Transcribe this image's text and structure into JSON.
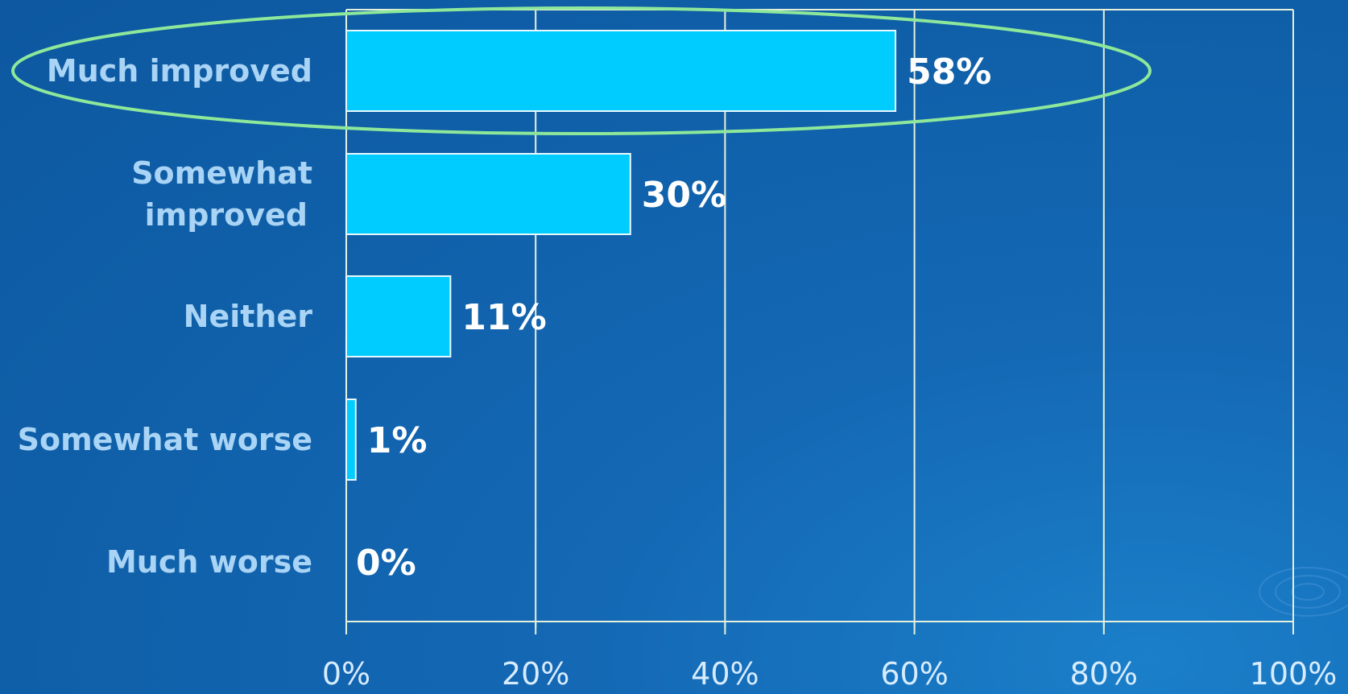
{
  "chart_data": {
    "type": "bar",
    "orientation": "horizontal",
    "categories": [
      [
        "Much improved"
      ],
      [
        "Somewhat",
        "improved"
      ],
      [
        "Neither"
      ],
      [
        "Somewhat worse"
      ],
      [
        "Much worse"
      ]
    ],
    "values": [
      58,
      30,
      11,
      1,
      0
    ],
    "value_labels": [
      "58%",
      "30%",
      "11%",
      "1%",
      "0%"
    ],
    "xlim": [
      0,
      100
    ],
    "x_ticks": [
      0,
      20,
      40,
      60,
      80,
      100
    ],
    "x_tick_labels": [
      "0%",
      "20%",
      "40%",
      "60%",
      "80%",
      "100%"
    ],
    "grid": "vertical",
    "highlighted_category_index": 0,
    "colors": {
      "bar": "#00ccff",
      "highlight_ellipse": "#8ee89a",
      "category_text": "#a9d4f5",
      "value_text": "#ffffff"
    }
  }
}
